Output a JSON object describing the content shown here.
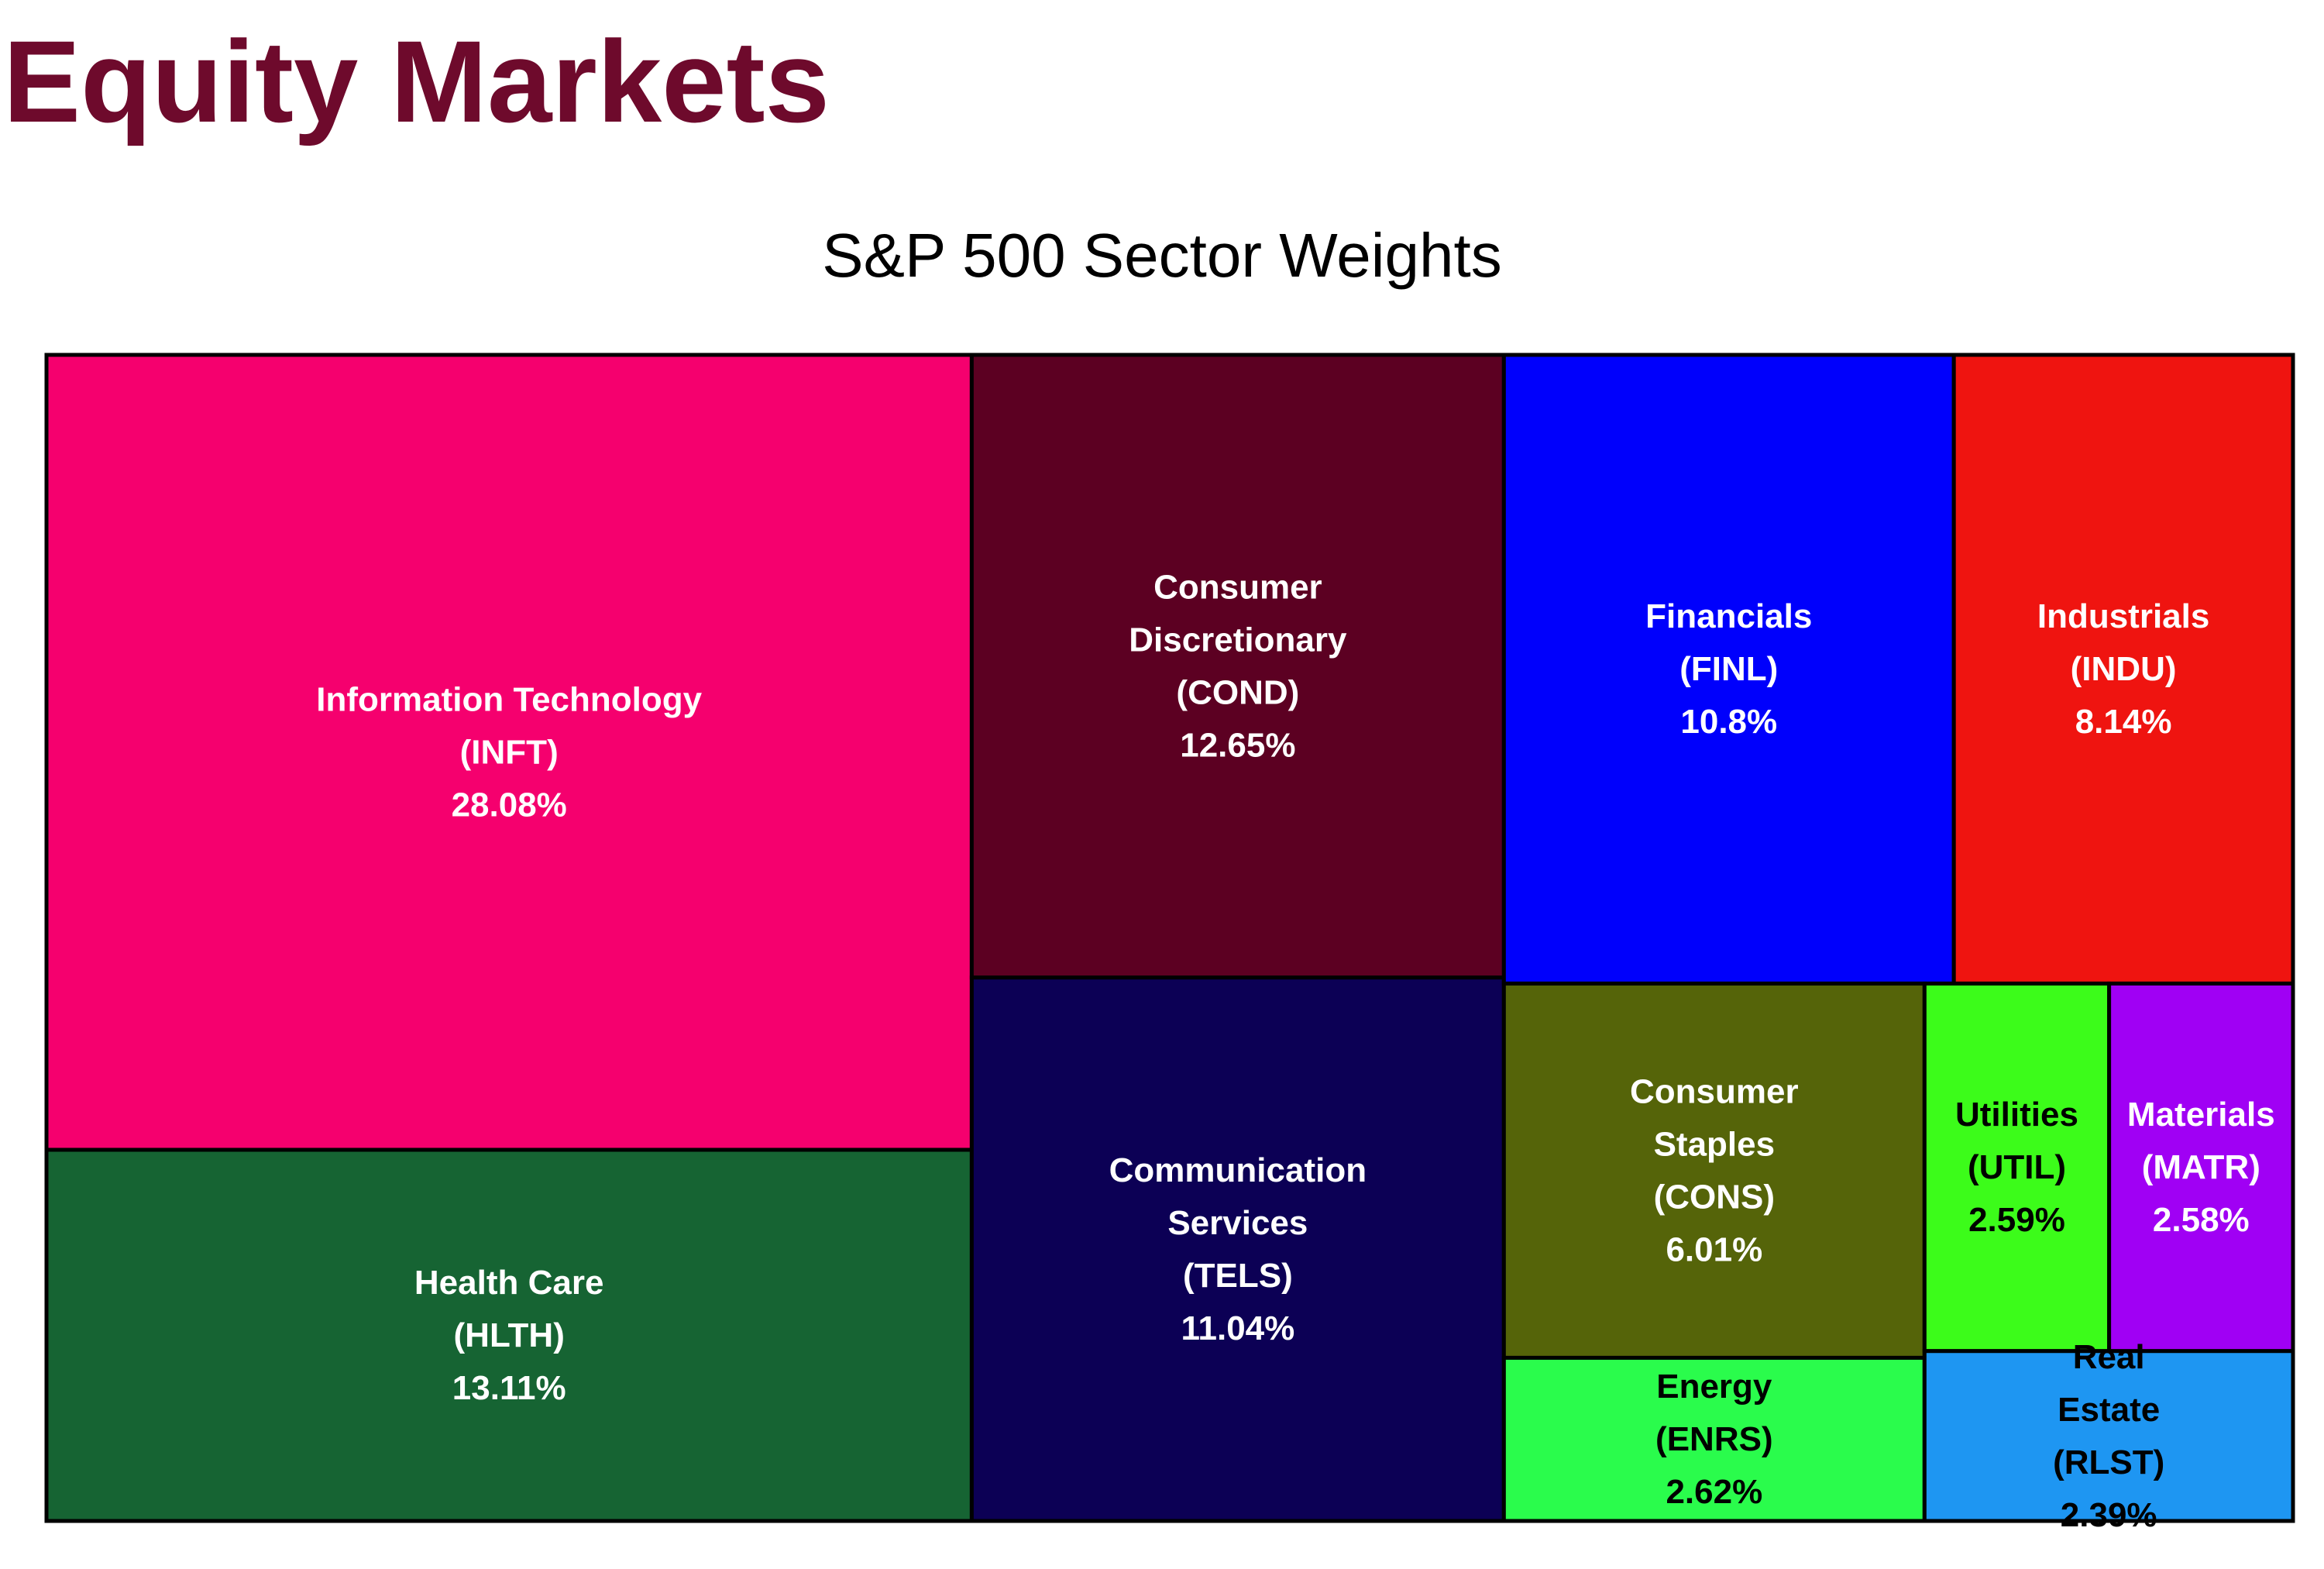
{
  "page": {
    "title": "Equity Markets"
  },
  "chart_data": {
    "type": "treemap",
    "title": "S&P 500 Sector Weights",
    "unit": "%",
    "tiles": [
      {
        "name": "Information Technology",
        "name_lines": [
          "Information Technology"
        ],
        "code": "INFT",
        "value": 28.08,
        "value_label": "28.08%",
        "color": "#f5006e",
        "text_color": "#ffffff"
      },
      {
        "name": "Health Care",
        "name_lines": [
          "Health Care"
        ],
        "code": "HLTH",
        "value": 13.11,
        "value_label": "13.11%",
        "color": "#166433",
        "text_color": "#ffffff"
      },
      {
        "name": "Consumer Discretionary",
        "name_lines": [
          "Consumer",
          "Discretionary"
        ],
        "code": "COND",
        "value": 12.65,
        "value_label": "12.65%",
        "color": "#5c0022",
        "text_color": "#ffffff"
      },
      {
        "name": "Communication Services",
        "name_lines": [
          "Communication",
          "Services"
        ],
        "code": "TELS",
        "value": 11.04,
        "value_label": "11.04%",
        "color": "#0c0055",
        "text_color": "#ffffff"
      },
      {
        "name": "Financials",
        "name_lines": [
          "Financials"
        ],
        "code": "FINL",
        "value": 10.8,
        "value_label": "10.8%",
        "color": "#0000fc",
        "text_color": "#ffffff"
      },
      {
        "name": "Industrials",
        "name_lines": [
          "Industrials"
        ],
        "code": "INDU",
        "value": 8.14,
        "value_label": "8.14%",
        "color": "#ef1410",
        "text_color": "#ffffff"
      },
      {
        "name": "Consumer Staples",
        "name_lines": [
          "Consumer",
          "Staples"
        ],
        "code": "CONS",
        "value": 6.01,
        "value_label": "6.01%",
        "color": "#556409",
        "text_color": "#ffffff"
      },
      {
        "name": "Utilities",
        "name_lines": [
          "Utilities"
        ],
        "code": "UTIL",
        "value": 2.59,
        "value_label": "2.59%",
        "color": "#3cfc1a",
        "text_color": "#000000"
      },
      {
        "name": "Materials",
        "name_lines": [
          "Materials"
        ],
        "code": "MATR",
        "value": 2.58,
        "value_label": "2.58%",
        "color": "#a000f4",
        "text_color": "#ffffff"
      },
      {
        "name": "Energy",
        "name_lines": [
          "Energy"
        ],
        "code": "ENRS",
        "value": 2.62,
        "value_label": "2.62%",
        "color": "#2afc4c",
        "text_color": "#000000"
      },
      {
        "name": "Real Estate",
        "name_lines": [
          "Real",
          "Estate"
        ],
        "code": "RLST",
        "value": 2.39,
        "value_label": "2.39%",
        "color": "#1e96f2",
        "text_color": "#000000"
      }
    ]
  }
}
